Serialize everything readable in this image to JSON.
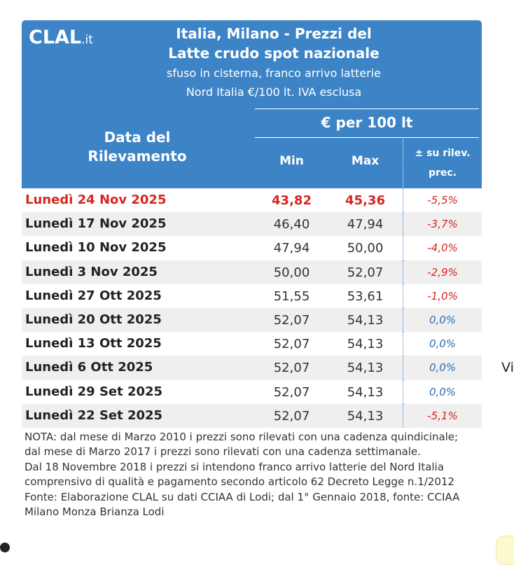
{
  "logo": {
    "brand": "CLAL",
    "tld": ".it"
  },
  "header": {
    "title_line1": "Italia, Milano - Prezzi del",
    "title_line2": "Latte crudo spot nazionale",
    "subtitle_line1": "sfuso in cisterna, franco arrivo latterie",
    "subtitle_line2": "Nord Italia €/100 lt. IVA esclusa",
    "date_col_line1": "Data del",
    "date_col_line2": "Rilevamento",
    "unit": "€ per 100 lt",
    "col_min": "Min",
    "col_max": "Max",
    "col_var_line1": "± su rilev.",
    "col_var_line2": "prec."
  },
  "rows": [
    {
      "date": "Lunedì 24 Nov 2025",
      "min": "43,82",
      "max": "45,36",
      "var": "-5,5%"
    },
    {
      "date": "Lunedì 17 Nov 2025",
      "min": "46,40",
      "max": "47,94",
      "var": "-3,7%"
    },
    {
      "date": "Lunedì 10 Nov 2025",
      "min": "47,94",
      "max": "50,00",
      "var": "-4,0%"
    },
    {
      "date": "Lunedì 3 Nov 2025",
      "min": "50,00",
      "max": "52,07",
      "var": "-2,9%"
    },
    {
      "date": "Lunedì 27 Ott 2025",
      "min": "51,55",
      "max": "53,61",
      "var": "-1,0%"
    },
    {
      "date": "Lunedì 20 Ott 2025",
      "min": "52,07",
      "max": "54,13",
      "var": "0,0%"
    },
    {
      "date": "Lunedì 13 Ott 2025",
      "min": "52,07",
      "max": "54,13",
      "var": "0,0%"
    },
    {
      "date": "Lunedì 6 Ott 2025",
      "min": "52,07",
      "max": "54,13",
      "var": "0,0%"
    },
    {
      "date": "Lunedì 29 Set 2025",
      "min": "52,07",
      "max": "54,13",
      "var": "0,0%"
    },
    {
      "date": "Lunedì 22 Set 2025",
      "min": "52,07",
      "max": "54,13",
      "var": "-5,1%"
    }
  ],
  "notes": {
    "nota": "NOTA: dal mese di Marzo 2010 i prezzi sono rilevati con una cadenza quindicinale; dal mese di Marzo 2017 i prezzi sono rilevati con una cadenza settimanale.",
    "franco": "Dal 18 Novembre 2018 i prezzi si intendono franco arrivo latterie del Nord Italia comprensivo di qualità e pagamento secondo articolo 62 Decreto Legge n.1/2012",
    "fonte": "Fonte: Elaborazione CLAL su dati CCIAA di Lodi; dal 1° Gennaio 2018, fonte: CCIAA Milano Monza Brianza Lodi"
  },
  "side_text": "Vi",
  "colors": {
    "header_bg": "#3d84c6",
    "highlight": "#d7261e",
    "zero": "#2f6fae"
  }
}
